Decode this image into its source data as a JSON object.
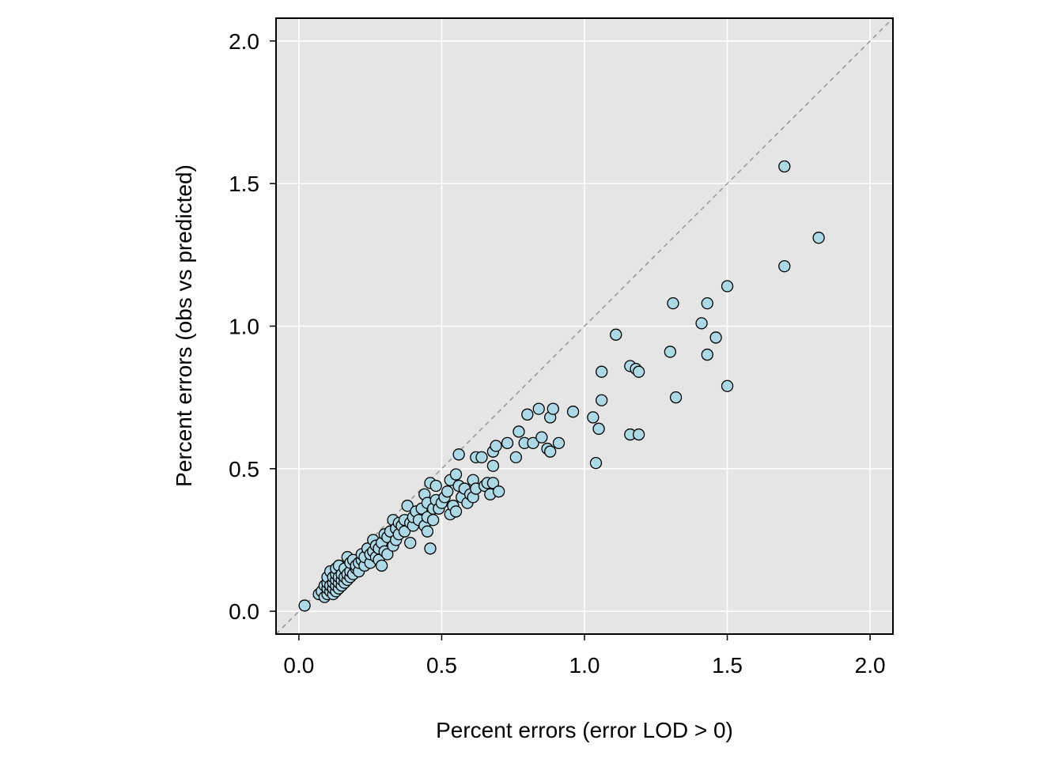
{
  "chart_data": {
    "type": "scatter",
    "xlabel": "Percent errors (error LOD > 0)",
    "ylabel": "Percent errors (obs vs predicted)",
    "xlim": [
      -0.08,
      2.08
    ],
    "ylim": [
      -0.08,
      2.08
    ],
    "xticks": [
      "0.0",
      "0.5",
      "1.0",
      "1.5",
      "2.0"
    ],
    "yticks": [
      "0.0",
      "0.5",
      "1.0",
      "1.5",
      "2.0"
    ],
    "grid": true,
    "reference_line": "y = x (dashed)",
    "colors": {
      "panel_background": "#e5e5e5",
      "grid": "#ffffff",
      "point_fill": "#add8e6",
      "point_stroke": "#000000",
      "reference_line": "#999999"
    },
    "points": [
      [
        0.02,
        0.02
      ],
      [
        0.07,
        0.06
      ],
      [
        0.08,
        0.07
      ],
      [
        0.09,
        0.05
      ],
      [
        0.09,
        0.09
      ],
      [
        0.1,
        0.06
      ],
      [
        0.1,
        0.08
      ],
      [
        0.1,
        0.1
      ],
      [
        0.1,
        0.12
      ],
      [
        0.11,
        0.07
      ],
      [
        0.11,
        0.09
      ],
      [
        0.11,
        0.14
      ],
      [
        0.12,
        0.06
      ],
      [
        0.12,
        0.08
      ],
      [
        0.12,
        0.1
      ],
      [
        0.12,
        0.12
      ],
      [
        0.13,
        0.07
      ],
      [
        0.13,
        0.09
      ],
      [
        0.13,
        0.11
      ],
      [
        0.13,
        0.13
      ],
      [
        0.13,
        0.15
      ],
      [
        0.14,
        0.08
      ],
      [
        0.14,
        0.1
      ],
      [
        0.14,
        0.12
      ],
      [
        0.14,
        0.16
      ],
      [
        0.15,
        0.09
      ],
      [
        0.15,
        0.11
      ],
      [
        0.15,
        0.13
      ],
      [
        0.16,
        0.1
      ],
      [
        0.16,
        0.12
      ],
      [
        0.16,
        0.15
      ],
      [
        0.17,
        0.11
      ],
      [
        0.17,
        0.13
      ],
      [
        0.17,
        0.19
      ],
      [
        0.18,
        0.12
      ],
      [
        0.18,
        0.14
      ],
      [
        0.18,
        0.17
      ],
      [
        0.19,
        0.13
      ],
      [
        0.19,
        0.18
      ],
      [
        0.2,
        0.15
      ],
      [
        0.2,
        0.16
      ],
      [
        0.21,
        0.14
      ],
      [
        0.21,
        0.17
      ],
      [
        0.22,
        0.18
      ],
      [
        0.22,
        0.2
      ],
      [
        0.23,
        0.16
      ],
      [
        0.23,
        0.19
      ],
      [
        0.24,
        0.22
      ],
      [
        0.25,
        0.17
      ],
      [
        0.25,
        0.2
      ],
      [
        0.26,
        0.21
      ],
      [
        0.26,
        0.25
      ],
      [
        0.27,
        0.19
      ],
      [
        0.27,
        0.23
      ],
      [
        0.28,
        0.18
      ],
      [
        0.28,
        0.22
      ],
      [
        0.29,
        0.16
      ],
      [
        0.29,
        0.24
      ],
      [
        0.3,
        0.21
      ],
      [
        0.3,
        0.27
      ],
      [
        0.31,
        0.2
      ],
      [
        0.31,
        0.26
      ],
      [
        0.32,
        0.28
      ],
      [
        0.33,
        0.23
      ],
      [
        0.33,
        0.32
      ],
      [
        0.34,
        0.25
      ],
      [
        0.34,
        0.29
      ],
      [
        0.35,
        0.27
      ],
      [
        0.35,
        0.31
      ],
      [
        0.36,
        0.3
      ],
      [
        0.37,
        0.28
      ],
      [
        0.37,
        0.32
      ],
      [
        0.38,
        0.37
      ],
      [
        0.39,
        0.24
      ],
      [
        0.39,
        0.31
      ],
      [
        0.4,
        0.3
      ],
      [
        0.4,
        0.33
      ],
      [
        0.41,
        0.35
      ],
      [
        0.42,
        0.32
      ],
      [
        0.43,
        0.36
      ],
      [
        0.44,
        0.3
      ],
      [
        0.44,
        0.41
      ],
      [
        0.45,
        0.28
      ],
      [
        0.45,
        0.33
      ],
      [
        0.45,
        0.38
      ],
      [
        0.46,
        0.22
      ],
      [
        0.46,
        0.45
      ],
      [
        0.47,
        0.32
      ],
      [
        0.47,
        0.36
      ],
      [
        0.48,
        0.39
      ],
      [
        0.48,
        0.44
      ],
      [
        0.49,
        0.36
      ],
      [
        0.5,
        0.38
      ],
      [
        0.51,
        0.4
      ],
      [
        0.52,
        0.42
      ],
      [
        0.53,
        0.34
      ],
      [
        0.53,
        0.46
      ],
      [
        0.54,
        0.37
      ],
      [
        0.55,
        0.35
      ],
      [
        0.55,
        0.48
      ],
      [
        0.56,
        0.44
      ],
      [
        0.56,
        0.55
      ],
      [
        0.57,
        0.4
      ],
      [
        0.58,
        0.43
      ],
      [
        0.59,
        0.38
      ],
      [
        0.6,
        0.41
      ],
      [
        0.61,
        0.46
      ],
      [
        0.61,
        0.4
      ],
      [
        0.62,
        0.43
      ],
      [
        0.62,
        0.54
      ],
      [
        0.64,
        0.54
      ],
      [
        0.65,
        0.44
      ],
      [
        0.66,
        0.45
      ],
      [
        0.67,
        0.41
      ],
      [
        0.68,
        0.45
      ],
      [
        0.68,
        0.51
      ],
      [
        0.68,
        0.56
      ],
      [
        0.69,
        0.58
      ],
      [
        0.7,
        0.42
      ],
      [
        0.73,
        0.59
      ],
      [
        0.76,
        0.54
      ],
      [
        0.77,
        0.63
      ],
      [
        0.79,
        0.59
      ],
      [
        0.8,
        0.69
      ],
      [
        0.82,
        0.59
      ],
      [
        0.84,
        0.71
      ],
      [
        0.85,
        0.61
      ],
      [
        0.87,
        0.57
      ],
      [
        0.88,
        0.56
      ],
      [
        0.88,
        0.68
      ],
      [
        0.89,
        0.71
      ],
      [
        0.91,
        0.59
      ],
      [
        0.96,
        0.7
      ],
      [
        1.03,
        0.68
      ],
      [
        1.04,
        0.52
      ],
      [
        1.05,
        0.64
      ],
      [
        1.06,
        0.74
      ],
      [
        1.06,
        0.84
      ],
      [
        1.11,
        0.97
      ],
      [
        1.16,
        0.62
      ],
      [
        1.16,
        0.86
      ],
      [
        1.18,
        0.85
      ],
      [
        1.19,
        0.84
      ],
      [
        1.19,
        0.62
      ],
      [
        1.3,
        0.91
      ],
      [
        1.31,
        1.08
      ],
      [
        1.32,
        0.75
      ],
      [
        1.41,
        1.01
      ],
      [
        1.43,
        1.08
      ],
      [
        1.43,
        0.9
      ],
      [
        1.46,
        0.96
      ],
      [
        1.5,
        1.14
      ],
      [
        1.5,
        0.79
      ],
      [
        1.7,
        1.21
      ],
      [
        1.7,
        1.56
      ],
      [
        1.82,
        1.31
      ]
    ]
  }
}
